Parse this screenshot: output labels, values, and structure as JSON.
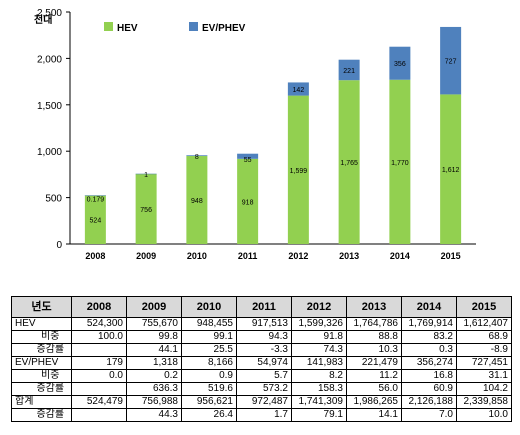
{
  "chart_data": {
    "type": "bar",
    "stacked": true,
    "y_unit": "천대",
    "categories": [
      "2008",
      "2009",
      "2010",
      "2011",
      "2012",
      "2013",
      "2014",
      "2015"
    ],
    "series": [
      {
        "name": "HEV",
        "color": "#92d050",
        "values": [
          524,
          756,
          948,
          918,
          1599,
          1765,
          1770,
          1612
        ],
        "labels": [
          "524",
          "756",
          "948",
          "918",
          "1,599",
          "1,765",
          "1,770",
          "1,612"
        ]
      },
      {
        "name": "EV/PHEV",
        "color": "#4f81bd",
        "values": [
          0.179,
          1,
          8,
          55,
          142,
          221,
          356,
          727
        ],
        "labels": [
          "0.179",
          "1",
          "8",
          "55",
          "142",
          "221",
          "356",
          "727"
        ]
      }
    ],
    "ylim": [
      0,
      2500
    ],
    "yticks": [
      0,
      500,
      1000,
      1500,
      2000,
      2500
    ],
    "ytick_labels": [
      "0",
      "500",
      "1,000",
      "1,500",
      "2,000",
      "2,500"
    ],
    "grid": false,
    "legend": "top-left"
  },
  "table": {
    "headers": [
      "년도",
      "2008",
      "2009",
      "2010",
      "2011",
      "2012",
      "2013",
      "2014",
      "2015"
    ],
    "rows": [
      {
        "cat": "HEV",
        "sub": "",
        "values": [
          "524,300",
          "755,670",
          "948,455",
          "917,513",
          "1,599,326",
          "1,764,786",
          "1,769,914",
          "1,612,407"
        ]
      },
      {
        "cat": "",
        "sub": "비중",
        "values": [
          "100.0",
          "99.8",
          "99.1",
          "94.3",
          "91.8",
          "88.8",
          "83.2",
          "68.9"
        ]
      },
      {
        "cat": "",
        "sub": "증감률",
        "values": [
          "",
          "44.1",
          "25.5",
          "-3.3",
          "74.3",
          "10.3",
          "0.3",
          "-8.9"
        ]
      },
      {
        "cat": "EV/PHEV",
        "sub": "",
        "values": [
          "179",
          "1,318",
          "8,166",
          "54,974",
          "141,983",
          "221,479",
          "356,274",
          "727,451"
        ]
      },
      {
        "cat": "",
        "sub": "비중",
        "values": [
          "0.0",
          "0.2",
          "0.9",
          "5.7",
          "8.2",
          "11.2",
          "16.8",
          "31.1"
        ]
      },
      {
        "cat": "",
        "sub": "증감률",
        "values": [
          "",
          "636.3",
          "519.6",
          "573.2",
          "158.3",
          "56.0",
          "60.9",
          "104.2"
        ]
      },
      {
        "cat": "합계",
        "sub": "",
        "values": [
          "524,479",
          "756,988",
          "956,621",
          "972,487",
          "1,741,309",
          "1,986,265",
          "2,126,188",
          "2,339,858"
        ]
      },
      {
        "cat": "",
        "sub": "증감률",
        "values": [
          "",
          "44.3",
          "26.4",
          "1.7",
          "79.1",
          "14.1",
          "7.0",
          "10.0"
        ]
      }
    ]
  }
}
